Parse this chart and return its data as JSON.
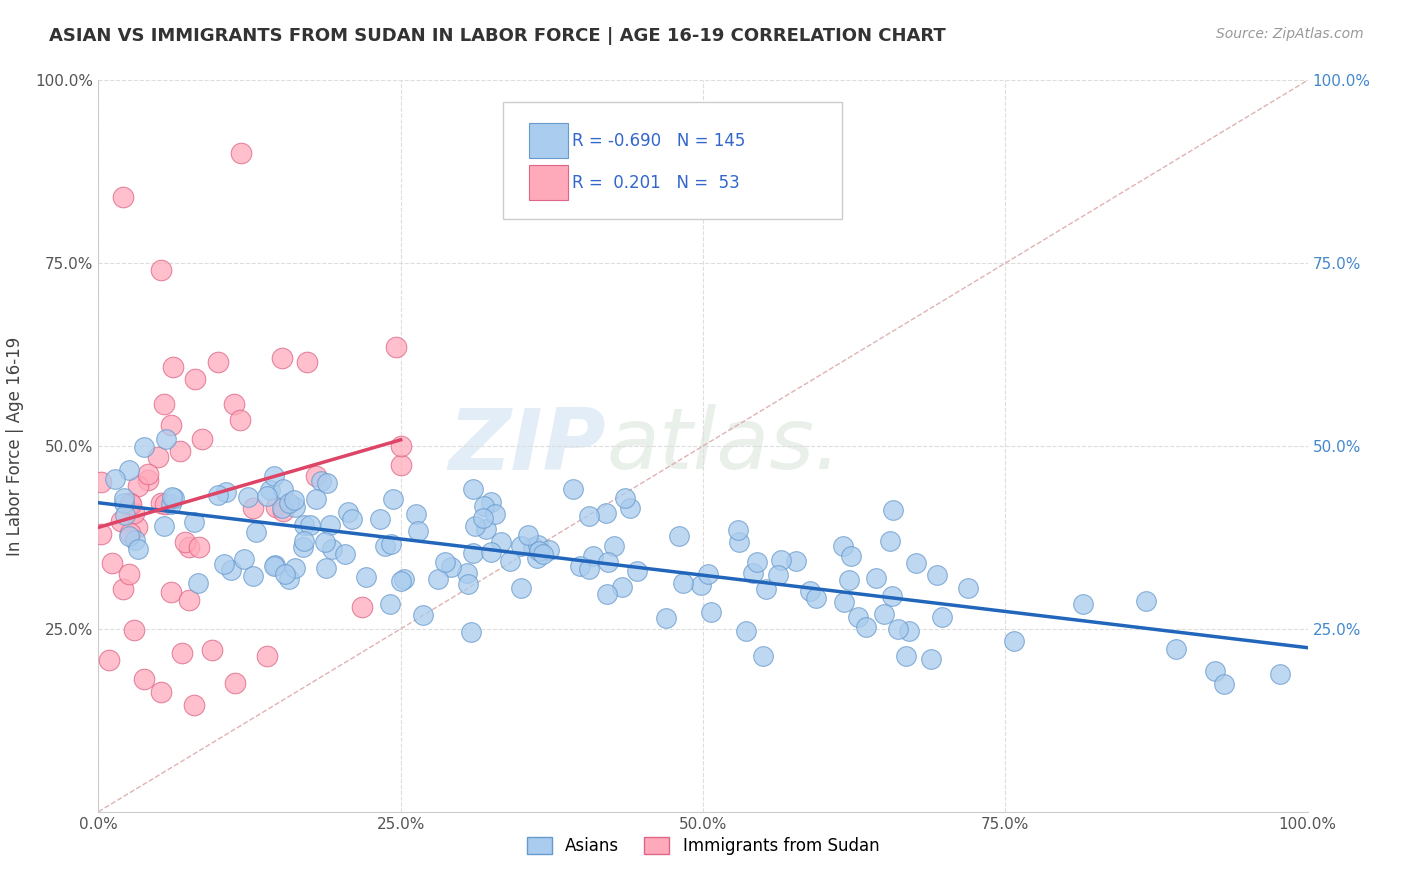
{
  "title": "ASIAN VS IMMIGRANTS FROM SUDAN IN LABOR FORCE | AGE 16-19 CORRELATION CHART",
  "source_text": "Source: ZipAtlas.com",
  "ylabel": "In Labor Force | Age 16-19",
  "xlim": [
    0.0,
    1.0
  ],
  "ylim": [
    0.0,
    1.0
  ],
  "xticks": [
    0.0,
    0.25,
    0.5,
    0.75,
    1.0
  ],
  "yticks": [
    0.0,
    0.25,
    0.5,
    0.75,
    1.0
  ],
  "xticklabels": [
    "0.0%",
    "25.0%",
    "50.0%",
    "75.0%",
    "100.0%"
  ],
  "ylabels_left": [
    "",
    "25.0%",
    "50.0%",
    "75.0%",
    "100.0%"
  ],
  "ylabels_right": [
    "",
    "25.0%",
    "50.0%",
    "75.0%",
    "100.0%"
  ],
  "asian_color": "#aaccee",
  "asian_edge_color": "#6699cc",
  "sudan_color": "#ffaabb",
  "sudan_edge_color": "#dd6688",
  "trend_blue_color": "#2266bb",
  "trend_pink_color": "#dd4466",
  "diagonal_color": "#ddaaaa",
  "R_asian": -0.69,
  "N_asian": 145,
  "R_sudan": 0.201,
  "N_sudan": 53,
  "legend_text_color": "#3366cc",
  "background_color": "#ffffff",
  "grid_color": "#dddddd",
  "title_color": "#333333",
  "title_fontsize": 13,
  "right_tick_color": "#4488cc",
  "watermark_zip_color": "#c8ddf0",
  "watermark_atlas_color": "#c8d8c8"
}
